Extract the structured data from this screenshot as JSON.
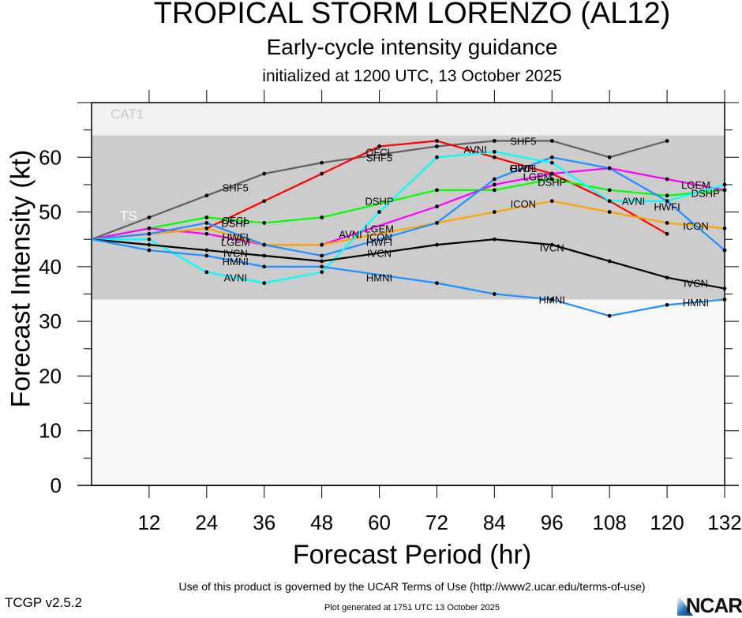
{
  "header": {
    "title": "TROPICAL STORM LORENZO (AL12)",
    "subtitle": "Early-cycle intensity guidance",
    "init": "initialized at 1200 UTC, 13 October 2025"
  },
  "footer": {
    "terms": "Use of this product is governed by the UCAR Terms of Use (http://www2.ucar.edu/terms-of-use)",
    "generated": "Plot generated at 1751 UTC   13 October 2025",
    "version": "TCGP v2.5.2",
    "logo": "NCAR"
  },
  "chart_data": {
    "type": "line",
    "title": "TROPICAL STORM LORENZO (AL12)",
    "xlabel": "Forecast Period (hr)",
    "ylabel": "Forecast Intensity (kt)",
    "xlim": [
      0,
      132
    ],
    "ylim": [
      0,
      70
    ],
    "xticks": [
      12,
      24,
      36,
      48,
      60,
      72,
      84,
      96,
      108,
      120,
      132
    ],
    "yticks": [
      0,
      10,
      20,
      30,
      40,
      50,
      60
    ],
    "bands": [
      {
        "name": "TS",
        "from": 34,
        "to": 64,
        "color": "#cccccc",
        "label_color": "#ffffff"
      },
      {
        "name": "CAT1",
        "from": 64,
        "to": 70,
        "color": "#f2f2f2",
        "label_color": "#c8c8c8"
      }
    ],
    "below_band_color": "#f8f8f8",
    "series": [
      {
        "name": "SHF5",
        "color": "#606060",
        "x": [
          0,
          12,
          24,
          36,
          48,
          72,
          84,
          96,
          108,
          120
        ],
        "values": [
          45,
          49,
          53,
          57,
          59,
          62,
          63,
          63,
          60,
          63
        ]
      },
      {
        "name": "OFCL",
        "color": "#ff0000",
        "x": [
          0,
          24,
          36,
          48,
          60,
          72,
          84,
          96,
          108,
          120
        ],
        "values": [
          45,
          47,
          52,
          57,
          62,
          63,
          60,
          57,
          52,
          46
        ]
      },
      {
        "name": "DSHP",
        "color": "#00ff00",
        "x": [
          0,
          12,
          24,
          36,
          48,
          72,
          84,
          96,
          108,
          120,
          132
        ],
        "values": [
          45,
          47,
          49,
          48,
          49,
          54,
          54,
          56,
          54,
          53,
          54
        ]
      },
      {
        "name": "LGEM",
        "color": "#ff00ff",
        "x": [
          0,
          12,
          24,
          36,
          48,
          72,
          84,
          96,
          108,
          120,
          132
        ],
        "values": [
          45,
          47,
          46,
          44,
          44,
          51,
          55,
          57,
          58,
          56,
          54
        ]
      },
      {
        "name": "ICON",
        "color": "#ffa500",
        "x": [
          0,
          12,
          24,
          36,
          48,
          72,
          84,
          96,
          108,
          120,
          132
        ],
        "values": [
          45,
          46,
          47,
          44,
          44,
          48,
          50,
          52,
          50,
          48,
          47
        ]
      },
      {
        "name": "HWFI",
        "color": "#1e90ff",
        "x": [
          0,
          12,
          24,
          36,
          48,
          72,
          84,
          96,
          108,
          120,
          132
        ],
        "values": [
          45,
          46,
          48,
          44,
          42,
          48,
          56,
          60,
          58,
          52,
          43
        ]
      },
      {
        "name": "AVNI",
        "color": "#00ffff",
        "x": [
          0,
          12,
          24,
          36,
          48,
          60,
          72,
          84,
          96,
          108,
          120,
          132
        ],
        "values": [
          45,
          45,
          39,
          37,
          39,
          50,
          60,
          61,
          59,
          52,
          52,
          55
        ]
      },
      {
        "name": "IVCN",
        "color": "#000000",
        "x": [
          0,
          12,
          24,
          36,
          48,
          72,
          84,
          96,
          108,
          120,
          132
        ],
        "values": [
          45,
          44,
          43,
          42,
          41,
          44,
          45,
          44,
          41,
          38,
          36
        ]
      },
      {
        "name": "HMNI",
        "color": "#1e90ff",
        "x": [
          0,
          12,
          24,
          36,
          48,
          72,
          84,
          96,
          108,
          120,
          132
        ],
        "values": [
          45,
          43,
          42,
          40,
          40,
          37,
          35,
          34,
          31,
          33,
          34
        ]
      }
    ],
    "line_labels": [
      {
        "series": "SHF5",
        "x": 30,
        "y": 54.5
      },
      {
        "series": "SHF5",
        "x": 60,
        "y": 60
      },
      {
        "series": "SHF5",
        "x": 90,
        "y": 63
      },
      {
        "series": "OFCL",
        "x": 60,
        "y": 61
      },
      {
        "series": "OFCL",
        "x": 30,
        "y": 48.5
      },
      {
        "series": "OFCL",
        "x": 90,
        "y": 58
      },
      {
        "series": "DSHP",
        "x": 30,
        "y": 48
      },
      {
        "series": "DSHP",
        "x": 60,
        "y": 52
      },
      {
        "series": "DSHP",
        "x": 96,
        "y": 55.5
      },
      {
        "series": "DSHP",
        "x": 128,
        "y": 53.5
      },
      {
        "series": "LGEM",
        "x": 30,
        "y": 44.5
      },
      {
        "series": "LGEM",
        "x": 60,
        "y": 47
      },
      {
        "series": "LGEM",
        "x": 93,
        "y": 56.5
      },
      {
        "series": "LGEM",
        "x": 126,
        "y": 55
      },
      {
        "series": "ICON",
        "x": 60,
        "y": 45.5
      },
      {
        "series": "ICON",
        "x": 90,
        "y": 51.5
      },
      {
        "series": "ICON",
        "x": 126,
        "y": 47.5
      },
      {
        "series": "HWFI",
        "x": 30,
        "y": 45.5
      },
      {
        "series": "HWFI",
        "x": 60,
        "y": 44.5
      },
      {
        "series": "HWFI",
        "x": 90,
        "y": 58
      },
      {
        "series": "HWFI",
        "x": 120,
        "y": 51
      },
      {
        "series": "AVNI",
        "x": 30,
        "y": 38
      },
      {
        "series": "AVNI",
        "x": 54,
        "y": 46
      },
      {
        "series": "AVNI",
        "x": 80,
        "y": 61.5
      },
      {
        "series": "AVNI",
        "x": 113,
        "y": 52
      },
      {
        "series": "IVCN",
        "x": 30,
        "y": 42.5
      },
      {
        "series": "IVCN",
        "x": 60,
        "y": 42.5
      },
      {
        "series": "IVCN",
        "x": 96,
        "y": 43.5
      },
      {
        "series": "IVCN",
        "x": 126,
        "y": 37
      },
      {
        "series": "HMNI",
        "x": 30,
        "y": 41
      },
      {
        "series": "HMNI",
        "x": 60,
        "y": 38
      },
      {
        "series": "HMNI",
        "x": 96,
        "y": 34
      },
      {
        "series": "HMNI",
        "x": 126,
        "y": 33.5
      }
    ]
  }
}
